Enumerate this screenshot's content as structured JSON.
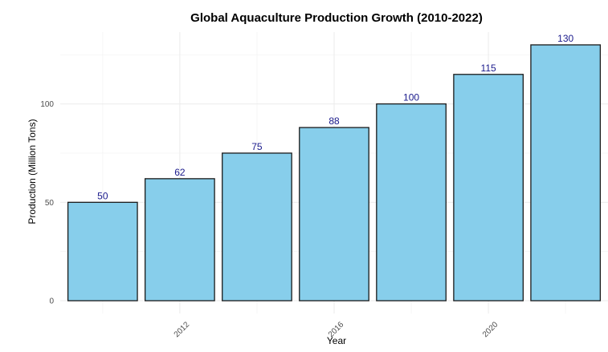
{
  "chart_data": {
    "type": "bar",
    "title": "Global Aquaculture Production Growth (2010-2022)",
    "xlabel": "Year",
    "ylabel": "Production (Million Tons)",
    "categories": [
      2010,
      2012,
      2014,
      2016,
      2018,
      2020,
      2022
    ],
    "values": [
      50,
      62,
      75,
      88,
      100,
      115,
      130
    ],
    "value_labels": [
      "50",
      "62",
      "75",
      "88",
      "100",
      "115",
      "130"
    ],
    "x_ticks": [
      2012,
      2016,
      2020
    ],
    "x_tick_labels": [
      "2012",
      "2016",
      "2020"
    ],
    "x_range": [
      2008.9,
      2023.1
    ],
    "y_ticks": [
      0,
      50,
      100
    ],
    "y_tick_labels": [
      "0",
      "50",
      "100"
    ],
    "y_range": [
      -6.5,
      136.5
    ],
    "grid": true,
    "colors": {
      "bar_fill": "#87CEEB",
      "bar_stroke": "#1a1a1a",
      "label": "#1a1a8c"
    }
  }
}
